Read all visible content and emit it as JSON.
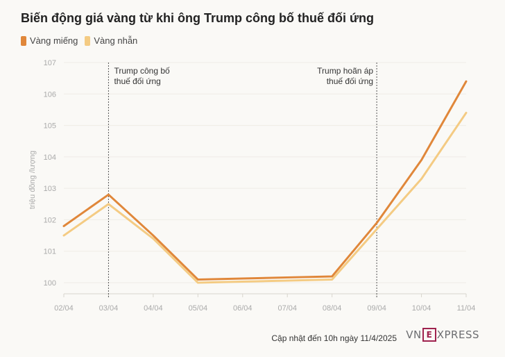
{
  "title": "Biến động giá vàng từ khi ông Trump công bố thuế đối ứng",
  "colors": {
    "bar": "#e0873a",
    "ring": "#f4cb83",
    "grid": "#d8d5cd",
    "axis_text": "#aaa"
  },
  "chart_data": {
    "type": "line",
    "x": [
      "02/04",
      "03/04",
      "04/04",
      "05/04",
      "06/04",
      "07/04",
      "08/04",
      "09/04",
      "10/04",
      "11/04"
    ],
    "ylabel": "triệu đồng /lượng",
    "ylim": [
      100,
      107
    ],
    "yticks": [
      100,
      101,
      102,
      103,
      104,
      105,
      106,
      107
    ],
    "series": [
      {
        "name": "Vàng miếng",
        "color": "#e0873a",
        "values": [
          101.8,
          102.8,
          101.5,
          100.1,
          100.133,
          100.167,
          100.2,
          101.9,
          103.9,
          106.4
        ]
      },
      {
        "name": "Vàng nhẫn",
        "color": "#f4cb83",
        "values": [
          101.5,
          102.5,
          101.4,
          100.0,
          100.033,
          100.067,
          100.1,
          101.7,
          103.3,
          105.4
        ]
      }
    ],
    "annotations": [
      {
        "x": "03/04",
        "lines": [
          "Trump công bố",
          "thuế đối ứng"
        ],
        "align": "left"
      },
      {
        "x": "09/04",
        "lines": [
          "Trump hoãn áp",
          "thuế đối ứng"
        ],
        "align": "right"
      }
    ]
  },
  "footer": {
    "updated": "Cập nhật đến 10h ngày 11/4/2025",
    "logo_left": "VN",
    "logo_e": "E",
    "logo_right": "XPRESS"
  }
}
